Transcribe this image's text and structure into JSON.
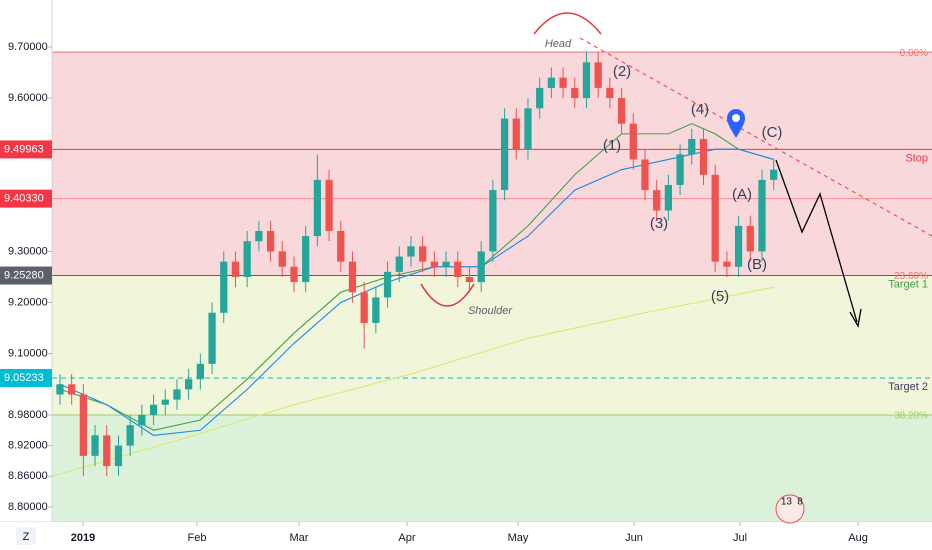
{
  "chart_data": {
    "type": "candlestick",
    "categories": [
      null,
      null,
      null,
      null,
      null,
      null,
      null,
      null,
      null,
      null,
      null,
      null,
      null,
      null,
      null,
      null,
      null,
      null,
      null,
      null,
      null,
      null,
      null,
      null,
      null,
      null,
      null,
      null,
      null,
      null,
      null,
      null,
      null,
      null,
      null,
      null,
      null,
      null,
      null,
      null,
      null,
      null,
      null,
      null,
      null,
      null,
      null,
      null,
      null,
      null,
      null,
      null,
      null,
      null,
      null,
      null,
      null,
      null,
      null,
      null,
      null,
      null
    ],
    "open": [
      9.02,
      9.04,
      9.02,
      8.9,
      8.94,
      8.88,
      8.92,
      8.96,
      8.98,
      9.0,
      9.01,
      9.03,
      9.05,
      9.08,
      9.18,
      9.28,
      9.25,
      9.32,
      9.34,
      9.3,
      9.27,
      9.24,
      9.33,
      9.44,
      9.34,
      9.28,
      9.22,
      9.16,
      9.21,
      9.26,
      9.29,
      9.31,
      9.28,
      9.27,
      9.28,
      9.25,
      9.24,
      9.3,
      9.42,
      9.56,
      9.5,
      9.58,
      9.62,
      9.64,
      9.62,
      9.6,
      9.67,
      9.62,
      9.6,
      9.55,
      9.48,
      9.42,
      9.38,
      9.43,
      9.49,
      9.52,
      9.45,
      9.28,
      9.27,
      9.35,
      9.3,
      9.44
    ],
    "high": [
      9.06,
      9.06,
      9.04,
      8.96,
      8.96,
      8.94,
      8.98,
      9.0,
      9.02,
      9.03,
      9.05,
      9.07,
      9.1,
      9.2,
      9.3,
      9.3,
      9.34,
      9.36,
      9.36,
      9.32,
      9.29,
      9.35,
      9.49,
      9.46,
      9.36,
      9.3,
      9.24,
      9.23,
      9.28,
      9.31,
      9.33,
      9.33,
      9.3,
      9.3,
      9.3,
      9.27,
      9.32,
      9.44,
      9.58,
      9.58,
      9.6,
      9.64,
      9.66,
      9.66,
      9.64,
      9.69,
      9.69,
      9.64,
      9.62,
      9.57,
      9.5,
      9.44,
      9.45,
      9.51,
      9.54,
      9.54,
      9.47,
      9.3,
      9.37,
      9.37,
      9.46,
      9.48
    ],
    "low": [
      9.0,
      9.0,
      8.86,
      8.88,
      8.86,
      8.86,
      8.9,
      8.94,
      8.96,
      8.98,
      8.99,
      9.01,
      9.03,
      9.06,
      9.16,
      9.23,
      9.23,
      9.3,
      9.28,
      9.25,
      9.22,
      9.22,
      9.31,
      9.32,
      9.26,
      9.2,
      9.11,
      9.14,
      9.19,
      9.24,
      9.27,
      9.26,
      9.25,
      9.25,
      9.23,
      9.22,
      9.22,
      9.28,
      9.4,
      9.48,
      9.48,
      9.56,
      9.6,
      9.6,
      9.58,
      9.58,
      9.6,
      9.58,
      9.53,
      9.46,
      9.4,
      9.36,
      9.36,
      9.41,
      9.47,
      9.43,
      9.26,
      9.25,
      9.25,
      9.28,
      9.28,
      9.42
    ],
    "close": [
      9.04,
      9.02,
      8.9,
      8.94,
      8.88,
      8.92,
      8.96,
      8.98,
      9.0,
      9.01,
      9.03,
      9.05,
      9.08,
      9.18,
      9.28,
      9.25,
      9.32,
      9.34,
      9.3,
      9.27,
      9.24,
      9.33,
      9.44,
      9.34,
      9.28,
      9.22,
      9.16,
      9.21,
      9.26,
      9.29,
      9.31,
      9.28,
      9.27,
      9.28,
      9.25,
      9.24,
      9.3,
      9.42,
      9.56,
      9.5,
      9.58,
      9.62,
      9.64,
      9.62,
      9.6,
      9.67,
      9.62,
      9.6,
      9.55,
      9.48,
      9.42,
      9.38,
      9.43,
      9.49,
      9.52,
      9.45,
      9.28,
      9.27,
      9.35,
      9.3,
      9.44,
      9.46
    ],
    "up_color": "#26a69a",
    "down_color": "#ef5350",
    "xlim": [
      -0.68,
      74.53
    ],
    "ylim": [
      8.7705,
      9.792
    ],
    "xticks": [
      {
        "value": 1.97,
        "label": "2019"
      },
      {
        "value": 11.71,
        "label": "Feb"
      },
      {
        "value": 20.43,
        "label": "Mar"
      },
      {
        "value": 29.66,
        "label": "Apr"
      },
      {
        "value": 39.15,
        "label": "May"
      },
      {
        "value": 49.06,
        "label": "Jun"
      },
      {
        "value": 58.12,
        "label": "Jul"
      },
      {
        "value": 68.21,
        "label": "Aug"
      }
    ],
    "yticks": [
      {
        "value": 9.7,
        "label": "9.70000"
      },
      {
        "value": 9.6,
        "label": "9.60000"
      },
      {
        "value": 9.3,
        "label": "9.30000"
      },
      {
        "value": 9.2,
        "label": "9.20000"
      },
      {
        "value": 9.1,
        "label": "9.10000"
      },
      {
        "value": 8.98,
        "label": "8.98000"
      },
      {
        "value": 8.92,
        "label": "8.92000"
      },
      {
        "value": 8.86,
        "label": "8.86000"
      },
      {
        "value": 8.8,
        "label": "8.80000"
      }
    ],
    "zones": [
      {
        "from": 9.69,
        "to": 9.2528,
        "color": "#f8d8da"
      },
      {
        "from": 9.2528,
        "to": 8.98,
        "color": "#f1f5da"
      },
      {
        "from": 8.98,
        "to": 8.7705,
        "color": "#dcf1da"
      }
    ],
    "fib_levels": [
      {
        "value": 9.69,
        "label": "0.00%",
        "color": "#e57373"
      },
      {
        "value": 9.2528,
        "label": "23.60%",
        "color": "#e57373"
      },
      {
        "value": 8.98,
        "label": "38.20%",
        "color": "#9ccc65"
      }
    ],
    "levels": [
      {
        "value": 9.49963,
        "label": "9.49963",
        "name": "Stop",
        "color": "#f23645"
      },
      {
        "value": 9.4033,
        "label": "9.40330",
        "color": "#f23645"
      },
      {
        "value": 9.2528,
        "label": "9.25280",
        "name": "Target 1",
        "color": "#5d606b"
      },
      {
        "value": 9.05233,
        "label": "9.05233",
        "name": "Target 2",
        "color": "#00bcd4"
      }
    ],
    "overlays": [
      {
        "color": "#43a047",
        "x": [
          0,
          4,
          8,
          12,
          16,
          20,
          24,
          28,
          32,
          36,
          40,
          44,
          48,
          52,
          54,
          56,
          58,
          61
        ],
        "values": [
          9.03,
          9.0,
          8.95,
          8.97,
          9.05,
          9.14,
          9.22,
          9.25,
          9.27,
          9.27,
          9.35,
          9.45,
          9.53,
          9.53,
          9.55,
          9.53,
          9.5,
          9.48
        ]
      },
      {
        "color": "#1e88e5",
        "x": [
          0,
          4,
          8,
          12,
          16,
          20,
          24,
          28,
          32,
          36,
          40,
          44,
          48,
          52,
          56,
          58,
          61
        ],
        "values": [
          9.04,
          9.0,
          8.94,
          8.95,
          9.03,
          9.12,
          9.2,
          9.24,
          9.27,
          9.27,
          9.33,
          9.42,
          9.46,
          9.48,
          9.5,
          9.5,
          9.48
        ]
      },
      {
        "color": "#dce775",
        "x": [
          -0.68,
          10,
          20,
          30,
          40,
          50,
          61
        ],
        "values": [
          8.86,
          8.93,
          9.0,
          9.06,
          9.13,
          9.18,
          9.23
        ]
      }
    ],
    "annotations": [
      "Head",
      "Shoulder",
      "(1)",
      "(2)",
      "(3)",
      "(4)",
      "(5)",
      "(A)",
      "(B)",
      "(C)"
    ]
  },
  "ui": {
    "zoom": "Z",
    "badge": [
      "13",
      "8"
    ]
  }
}
